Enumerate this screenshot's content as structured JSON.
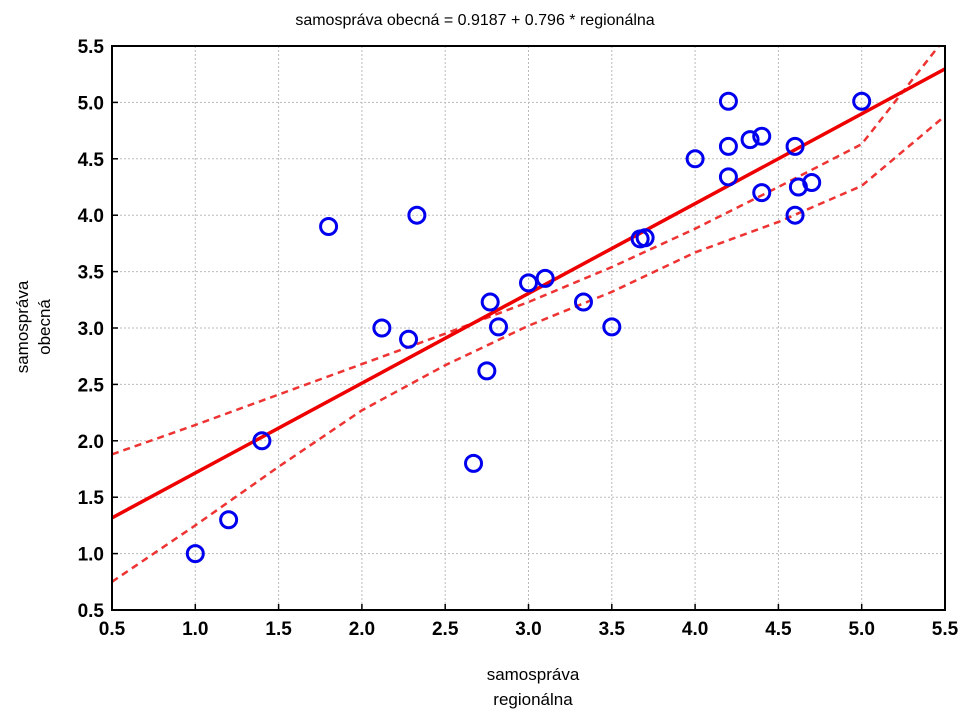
{
  "chart_data": {
    "type": "scatter",
    "title": "samospráva obecná = 0.9187 + 0.796 * regionálna",
    "xlabel_lines": [
      "samospráva",
      "regionálna"
    ],
    "ylabel_lines": [
      "samospráva",
      "obecná"
    ],
    "xlim": [
      0.5,
      5.5
    ],
    "ylim": [
      0.5,
      5.5
    ],
    "xticks": [
      "0.5",
      "1.0",
      "1.5",
      "2.0",
      "2.5",
      "3.0",
      "3.5",
      "4.0",
      "4.5",
      "5.0",
      "5.5"
    ],
    "yticks": [
      "0.5",
      "1.0",
      "1.5",
      "2.0",
      "2.5",
      "3.0",
      "3.5",
      "4.0",
      "4.5",
      "5.0",
      "5.5"
    ],
    "grid": true,
    "regression": {
      "intercept": 0.9187,
      "slope": 0.796
    },
    "confidence_band": {
      "upper": [
        [
          0.5,
          1.88
        ],
        [
          1.0,
          2.14
        ],
        [
          1.5,
          2.41
        ],
        [
          2.0,
          2.68
        ],
        [
          2.5,
          2.95
        ],
        [
          3.0,
          3.23
        ],
        [
          3.5,
          3.54
        ],
        [
          4.0,
          3.88
        ],
        [
          4.5,
          4.25
        ],
        [
          5.0,
          4.63
        ],
        [
          5.5,
          5.57
        ]
      ],
      "lower": [
        [
          0.5,
          0.75
        ],
        [
          1.0,
          1.25
        ],
        [
          1.5,
          1.77
        ],
        [
          2.0,
          2.27
        ],
        [
          2.5,
          2.67
        ],
        [
          3.0,
          3.02
        ],
        [
          3.5,
          3.32
        ],
        [
          4.0,
          3.67
        ],
        [
          4.5,
          3.94
        ],
        [
          5.0,
          4.26
        ],
        [
          5.5,
          4.88
        ]
      ]
    },
    "points": [
      {
        "x": 1.0,
        "y": 1.0
      },
      {
        "x": 1.2,
        "y": 1.3
      },
      {
        "x": 1.4,
        "y": 2.0
      },
      {
        "x": 1.8,
        "y": 3.9
      },
      {
        "x": 2.12,
        "y": 3.0
      },
      {
        "x": 2.28,
        "y": 2.9
      },
      {
        "x": 2.33,
        "y": 4.0
      },
      {
        "x": 2.67,
        "y": 1.8
      },
      {
        "x": 2.75,
        "y": 2.62
      },
      {
        "x": 2.77,
        "y": 3.23
      },
      {
        "x": 2.82,
        "y": 3.01
      },
      {
        "x": 3.0,
        "y": 3.4
      },
      {
        "x": 3.1,
        "y": 3.44
      },
      {
        "x": 3.33,
        "y": 3.23
      },
      {
        "x": 3.5,
        "y": 3.01
      },
      {
        "x": 3.67,
        "y": 3.79
      },
      {
        "x": 3.7,
        "y": 3.8
      },
      {
        "x": 4.0,
        "y": 4.5
      },
      {
        "x": 4.2,
        "y": 5.01
      },
      {
        "x": 4.2,
        "y": 4.61
      },
      {
        "x": 4.2,
        "y": 4.34
      },
      {
        "x": 4.33,
        "y": 4.67
      },
      {
        "x": 4.4,
        "y": 4.7
      },
      {
        "x": 4.4,
        "y": 4.2
      },
      {
        "x": 4.6,
        "y": 4.61
      },
      {
        "x": 4.6,
        "y": 4.0
      },
      {
        "x": 4.62,
        "y": 4.25
      },
      {
        "x": 4.7,
        "y": 4.29
      },
      {
        "x": 5.0,
        "y": 5.01
      }
    ],
    "colors": {
      "points": "#0000ee",
      "fit": "#ee0000",
      "band": "#ee3333",
      "grid": "#bbbbbb"
    }
  }
}
